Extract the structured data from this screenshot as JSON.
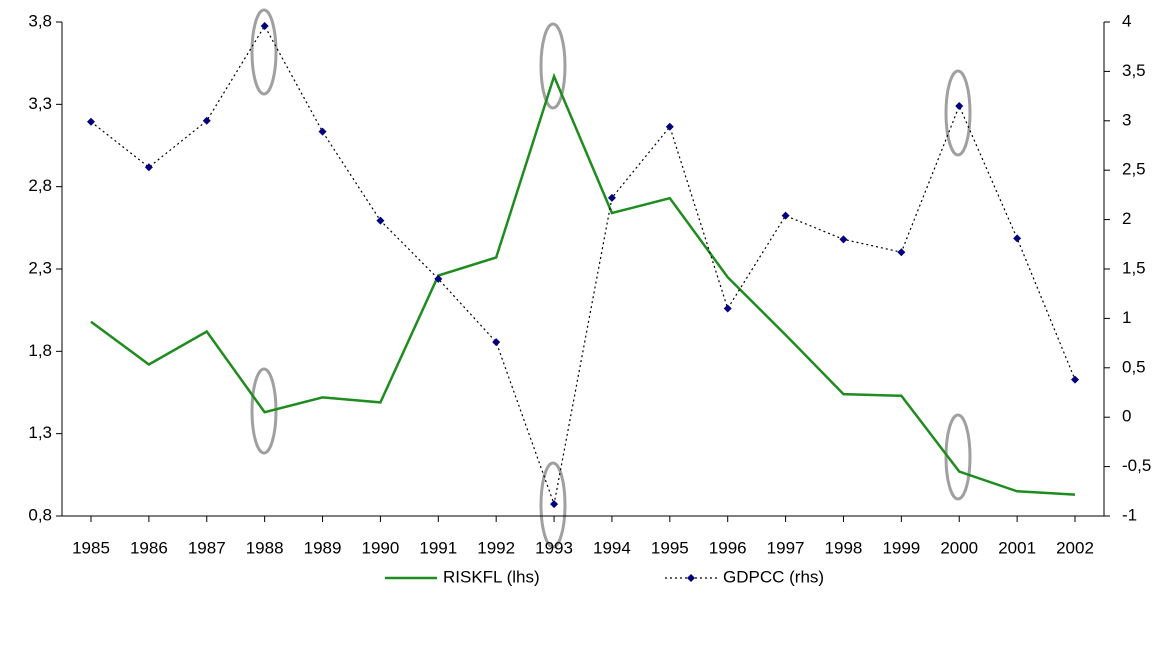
{
  "chart_data": {
    "type": "line",
    "categories": [
      "1985",
      "1986",
      "1987",
      "1988",
      "1989",
      "1990",
      "1991",
      "1992",
      "1993",
      "1994",
      "1995",
      "1996",
      "1997",
      "1998",
      "1999",
      "2000",
      "2001",
      "2002"
    ],
    "series": [
      {
        "name": "RISKFL (lhs)",
        "color": "#1f8c1f",
        "axis": "y",
        "style": "solid",
        "values": [
          1.98,
          1.72,
          1.92,
          1.43,
          1.52,
          1.49,
          2.26,
          2.37,
          3.47,
          2.64,
          2.73,
          2.25,
          1.9,
          1.54,
          1.53,
          1.07,
          0.95,
          0.93
        ]
      },
      {
        "name": "GDPCC (rhs)",
        "color": "#000080",
        "axis": "y2",
        "style": "dotted-marker",
        "values": [
          2.99,
          2.53,
          3.0,
          3.96,
          2.89,
          1.99,
          1.4,
          0.76,
          -0.88,
          2.22,
          2.94,
          1.1,
          2.04,
          1.8,
          1.67,
          3.15,
          1.81,
          0.38
        ]
      }
    ],
    "ylim": [
      0.8,
      3.8
    ],
    "yticks": [
      {
        "value": 0.8,
        "label": "0,8"
      },
      {
        "value": 1.3,
        "label": "1,3"
      },
      {
        "value": 1.8,
        "label": "1,8"
      },
      {
        "value": 2.3,
        "label": "2,3"
      },
      {
        "value": 2.8,
        "label": "2,8"
      },
      {
        "value": 3.3,
        "label": "3,3"
      },
      {
        "value": 3.8,
        "label": "3,8"
      }
    ],
    "y2lim": [
      -1,
      4
    ],
    "y2ticks": [
      -1,
      {
        "value": -0.5,
        "label": "-0,5"
      },
      0,
      {
        "value": 0.5,
        "label": "0,5"
      },
      1,
      {
        "value": 1.5,
        "label": "1,5"
      },
      2,
      {
        "value": 2.5,
        "label": "2,5"
      },
      3,
      {
        "value": 3.5,
        "label": "3,5"
      },
      4
    ],
    "grid": false,
    "legend": "bottom"
  }
}
